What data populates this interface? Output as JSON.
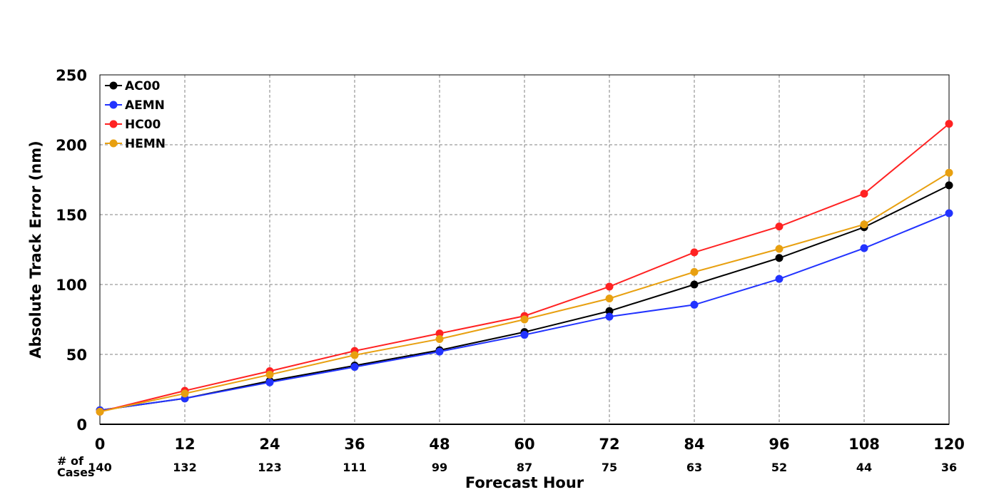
{
  "chart_data": {
    "type": "line",
    "x": [
      0,
      12,
      24,
      36,
      48,
      60,
      72,
      84,
      96,
      108,
      120
    ],
    "x_tick_labels": [
      "0",
      "12",
      "24",
      "36",
      "48",
      "60",
      "72",
      "84",
      "96",
      "108",
      "120"
    ],
    "xlabel": "Forecast Hour",
    "ylabel": "Absolute Track Error (nm)",
    "xlim": [
      0,
      120
    ],
    "ylim": [
      0,
      250
    ],
    "y_ticks": [
      0,
      50,
      100,
      150,
      200,
      250
    ],
    "y_tick_labels": [
      "0",
      "50",
      "100",
      "150",
      "200",
      "250"
    ],
    "grid": true,
    "legend_position": "top-left",
    "cases_label_line1": "# of",
    "cases_label_line2": "Cases",
    "cases": [
      "140",
      "132",
      "123",
      "111",
      "99",
      "87",
      "75",
      "63",
      "52",
      "44",
      "36"
    ],
    "series": [
      {
        "name": "AC00",
        "color": "#000000",
        "values": [
          10,
          18.5,
          31,
          42,
          53,
          66,
          81,
          100,
          119,
          141,
          171
        ]
      },
      {
        "name": "AEMN",
        "color": "#2233ff",
        "values": [
          10,
          18.5,
          30,
          41,
          52,
          64,
          77,
          85.5,
          104,
          126,
          151
        ]
      },
      {
        "name": "HC00",
        "color": "#ff2222",
        "values": [
          9,
          24,
          38,
          52.5,
          65,
          77.5,
          98.5,
          123,
          141.5,
          165,
          215
        ]
      },
      {
        "name": "HEMN",
        "color": "#e8a010",
        "values": [
          9,
          22,
          35.5,
          49.5,
          61,
          75,
          90,
          109,
          125.5,
          143,
          180
        ]
      }
    ]
  }
}
